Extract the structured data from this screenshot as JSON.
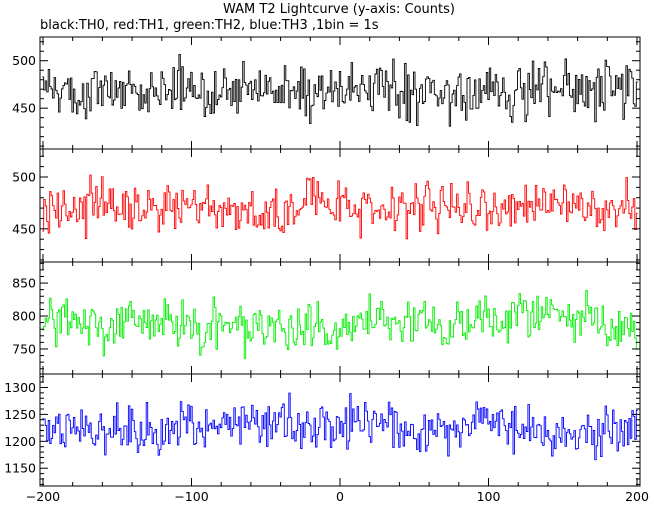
{
  "title": "WAM T2 Lightcurve (y-axis: Counts)",
  "subtitle": "black:TH0, red:TH1, green:TH2, blue:TH3 ,1bin = 1s",
  "chart_data": [
    {
      "type": "line",
      "series": [
        {
          "name": "TH0",
          "color": "#000000",
          "mean": 472,
          "noise": 24
        }
      ],
      "x": {
        "min": -200,
        "max": 200,
        "step": 1
      },
      "ylim": [
        407,
        525
      ],
      "yticks": [
        450,
        500
      ],
      "grid": false
    },
    {
      "type": "line",
      "series": [
        {
          "name": "TH1",
          "color": "#ff0000",
          "mean": 470,
          "noise": 20
        }
      ],
      "x": {
        "min": -200,
        "max": 200,
        "step": 1
      },
      "ylim": [
        418,
        527
      ],
      "yticks": [
        450,
        500
      ],
      "grid": false
    },
    {
      "type": "line",
      "series": [
        {
          "name": "TH2",
          "color": "#00ee00",
          "mean": 790,
          "noise": 30
        }
      ],
      "x": {
        "min": -200,
        "max": 200,
        "step": 1
      },
      "ylim": [
        712,
        882
      ],
      "yticks": [
        750,
        800,
        850
      ],
      "grid": false
    },
    {
      "type": "line",
      "series": [
        {
          "name": "TH3",
          "color": "#0000ff",
          "mean": 1228,
          "noise": 38
        }
      ],
      "x": {
        "min": -200,
        "max": 200,
        "step": 1
      },
      "ylim": [
        1117,
        1325
      ],
      "yticks": [
        1150,
        1200,
        1250,
        1300
      ],
      "grid": false
    }
  ],
  "xaxis": {
    "xlim": [
      -202,
      202
    ],
    "ticks": [
      -200,
      -100,
      0,
      100,
      200
    ],
    "labels": [
      "−200",
      "−100",
      "0",
      "100",
      "200"
    ]
  }
}
